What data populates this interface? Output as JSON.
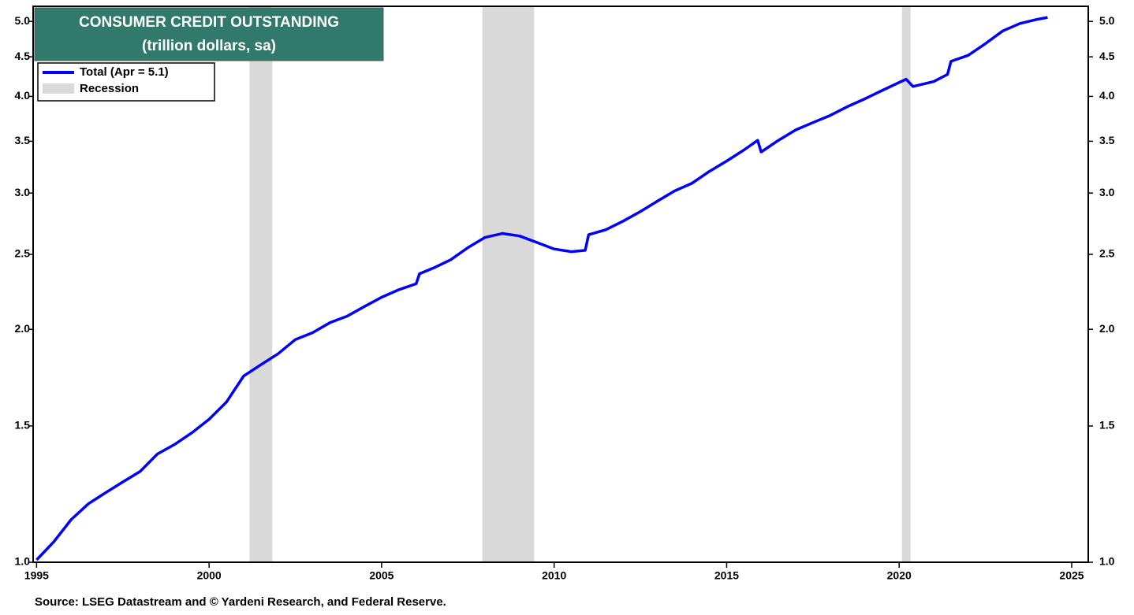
{
  "chart_data": {
    "type": "line",
    "title": "CONSUMER CREDIT OUTSTANDING",
    "subtitle": "(trillion dollars, sa)",
    "source": "Source: LSEG Datastream and © Yardeni Research, and Federal Reserve.",
    "log_scale": true,
    "x": [
      1995.0,
      1995.5,
      1996.0,
      1996.5,
      1997.0,
      1997.5,
      1998.0,
      1998.5,
      1999.0,
      1999.5,
      2000.0,
      2000.5,
      2001.0,
      2001.5,
      2002.0,
      2002.5,
      2003.0,
      2003.5,
      2004.0,
      2004.5,
      2005.0,
      2005.5,
      2006.0,
      2006.1,
      2006.5,
      2007.0,
      2007.5,
      2008.0,
      2008.5,
      2009.0,
      2009.5,
      2010.0,
      2010.5,
      2010.9,
      2011.0,
      2011.5,
      2012.0,
      2012.5,
      2013.0,
      2013.5,
      2014.0,
      2014.5,
      2015.0,
      2015.5,
      2015.9,
      2016.0,
      2016.5,
      2017.0,
      2017.5,
      2018.0,
      2018.5,
      2019.0,
      2019.5,
      2020.0,
      2020.2,
      2020.4,
      2020.7,
      2021.0,
      2021.4,
      2021.5,
      2022.0,
      2022.5,
      2023.0,
      2023.5,
      2024.0,
      2024.3
    ],
    "series": [
      {
        "name": "Total  (Apr = 5.1)",
        "color": "#0000ff",
        "values": [
          1.007,
          1.063,
          1.135,
          1.19,
          1.23,
          1.27,
          1.31,
          1.38,
          1.42,
          1.47,
          1.53,
          1.61,
          1.74,
          1.8,
          1.86,
          1.94,
          1.98,
          2.04,
          2.08,
          2.14,
          2.2,
          2.25,
          2.29,
          2.36,
          2.4,
          2.46,
          2.55,
          2.63,
          2.66,
          2.64,
          2.59,
          2.54,
          2.52,
          2.53,
          2.65,
          2.69,
          2.76,
          2.84,
          2.93,
          3.02,
          3.09,
          3.2,
          3.3,
          3.41,
          3.51,
          3.39,
          3.51,
          3.62,
          3.7,
          3.78,
          3.88,
          3.97,
          4.07,
          4.17,
          4.21,
          4.12,
          4.15,
          4.18,
          4.27,
          4.44,
          4.52,
          4.68,
          4.86,
          4.97,
          5.03,
          5.06
        ]
      }
    ],
    "recession_name": "Recession",
    "recession_color": "#d9d9d9",
    "recessions": [
      [
        2001.17,
        2001.83
      ],
      [
        2007.92,
        2009.42
      ],
      [
        2020.08,
        2020.33
      ]
    ],
    "xlim": [
      1994.9,
      2025.48
    ],
    "xticks": [
      1995,
      2000,
      2005,
      2010,
      2015,
      2020,
      2025
    ],
    "ylim": [
      1.0,
      5.23
    ],
    "yticks": [
      {
        "value": 1,
        "label": "1.0"
      },
      1.5,
      {
        "value": 2,
        "label": "2.0"
      },
      2.5,
      {
        "value": 3,
        "label": "3.0"
      },
      3.5,
      {
        "value": 4,
        "label": "4.0"
      },
      4.5,
      {
        "value": 5,
        "label": "5.0"
      }
    ]
  }
}
